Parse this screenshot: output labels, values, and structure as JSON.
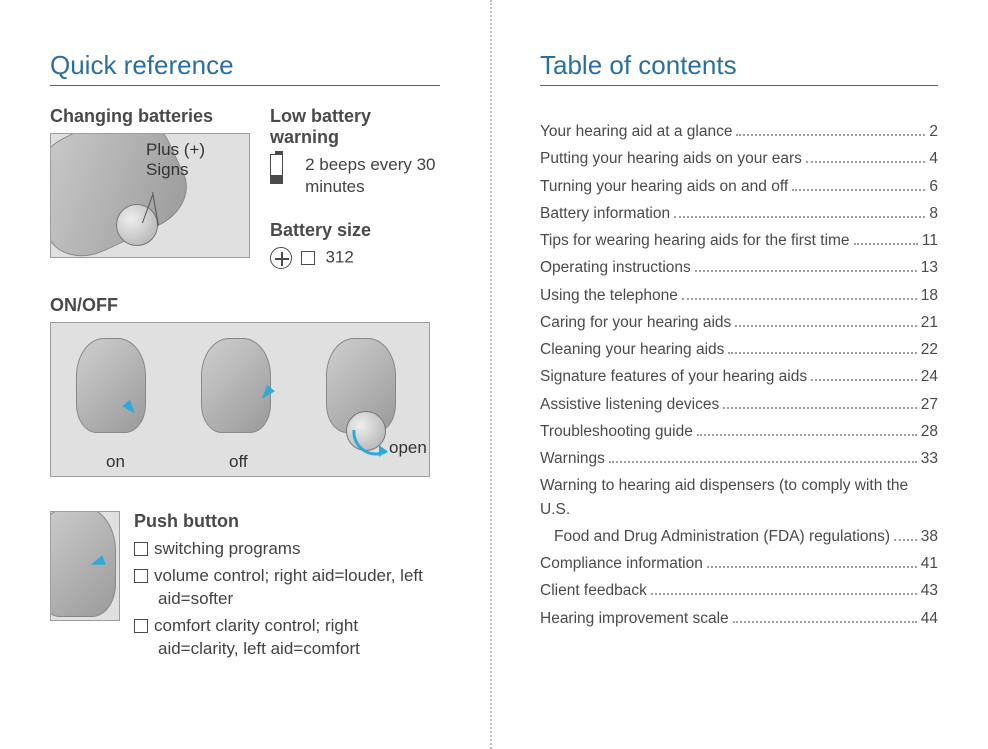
{
  "colors": {
    "accent": "#2b6fa0",
    "text": "#424242",
    "sub_text": "#4a4a4a",
    "border": "#9e9e9e",
    "arrow": "#2fa9d9",
    "divider": "#bdbdbd",
    "background": "#ffffff"
  },
  "typography": {
    "title_fontsize": 26,
    "subheading_fontsize": 18,
    "body_fontsize": 17,
    "toc_fontsize": 15.5,
    "font_family": "Myriad Pro / sans-serif"
  },
  "left": {
    "title": "Quick reference",
    "changing_batteries": {
      "heading": "Changing batteries",
      "annotation": "Plus (+)\nSigns"
    },
    "low_battery": {
      "heading": "Low battery warning",
      "text": "2 beeps every 30 minutes"
    },
    "battery_size": {
      "heading": "Battery size",
      "value": "312"
    },
    "onoff": {
      "heading": "ON/OFF",
      "states": [
        "on",
        "off",
        "open"
      ]
    },
    "push_button": {
      "heading": "Push button",
      "options": [
        "switching programs",
        "volume control; right aid=louder, left aid=softer",
        "comfort clarity control; right aid=clarity, left aid=comfort"
      ]
    }
  },
  "right": {
    "title": "Table of contents",
    "entries": [
      {
        "label": "Your hearing aid at a glance",
        "page": "2"
      },
      {
        "label": "Putting your hearing aids on your ears",
        "page": "4"
      },
      {
        "label": "Turning your hearing aids on and off",
        "page": "6"
      },
      {
        "label": "Battery information",
        "page": "8"
      },
      {
        "label": "Tips for wearing hearing aids for the first time",
        "page": "11"
      },
      {
        "label": "Operating instructions",
        "page": "13"
      },
      {
        "label": "Using the telephone",
        "page": "18"
      },
      {
        "label": "Caring for your hearing aids",
        "page": "21"
      },
      {
        "label": "Cleaning your hearing aids",
        "page": "22"
      },
      {
        "label": "Signature features of your hearing aids",
        "page": "24"
      },
      {
        "label": "Assistive listening devices",
        "page": "27"
      },
      {
        "label": "Troubleshooting guide",
        "page": "28"
      },
      {
        "label": "Warnings",
        "page": "33"
      },
      {
        "label": "Warning to hearing aid dispensers (to comply with the U.S. Food and Drug Administration (FDA) regulations)",
        "page": "38",
        "wrap": true
      },
      {
        "label": "Compliance information",
        "page": "41"
      },
      {
        "label": "Client feedback",
        "page": "43"
      },
      {
        "label": "Hearing improvement scale",
        "page": "44"
      }
    ]
  }
}
